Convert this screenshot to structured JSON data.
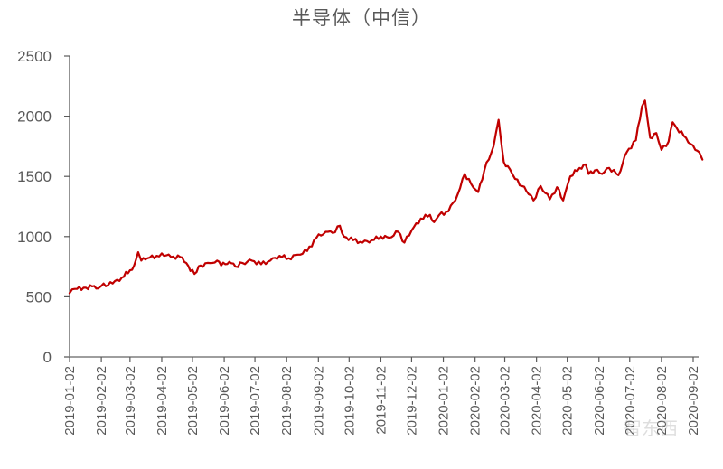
{
  "title": "半导体（中信）",
  "watermark": "智东西",
  "colors": {
    "line": "#C00000",
    "axis": "#595959",
    "text": "#595959",
    "background": "#FFFFFF"
  },
  "chart_data": {
    "type": "line",
    "title": "半导体（中信）",
    "xlabel": "",
    "ylabel": "",
    "ylim": [
      0,
      2500
    ],
    "yticks": [
      0,
      500,
      1000,
      1500,
      2000,
      2500
    ],
    "xticks": [
      "2019-01-02",
      "2019-02-02",
      "2019-03-02",
      "2019-04-02",
      "2019-05-02",
      "2019-06-02",
      "2019-07-02",
      "2019-08-02",
      "2019-09-02",
      "2019-10-02",
      "2019-11-02",
      "2019-12-02",
      "2020-01-02",
      "2020-02-02",
      "2020-03-02",
      "2020-04-02",
      "2020-05-02",
      "2020-06-02",
      "2020-07-02",
      "2020-08-02",
      "2020-09-02"
    ],
    "grid": false,
    "legend": "none",
    "series": [
      {
        "name": "半导体（中信）",
        "color": "#C00000",
        "points": [
          [
            "2019-01-02",
            530
          ],
          [
            "2019-01-07",
            565
          ],
          [
            "2019-01-18",
            575
          ],
          [
            "2019-01-26",
            590
          ],
          [
            "2019-01-30",
            570
          ],
          [
            "2019-02-02",
            590
          ],
          [
            "2019-02-13",
            610
          ],
          [
            "2019-02-22",
            660
          ],
          [
            "2019-03-02",
            720
          ],
          [
            "2019-03-06",
            760
          ],
          [
            "2019-03-10",
            870
          ],
          [
            "2019-03-13",
            800
          ],
          [
            "2019-03-19",
            820
          ],
          [
            "2019-03-28",
            840
          ],
          [
            "2019-04-02",
            860
          ],
          [
            "2019-04-11",
            830
          ],
          [
            "2019-04-20",
            830
          ],
          [
            "2019-04-24",
            790
          ],
          [
            "2019-05-04",
            690
          ],
          [
            "2019-05-10",
            760
          ],
          [
            "2019-05-19",
            780
          ],
          [
            "2019-05-26",
            800
          ],
          [
            "2019-05-30",
            760
          ],
          [
            "2019-06-07",
            790
          ],
          [
            "2019-06-13",
            750
          ],
          [
            "2019-06-20",
            780
          ],
          [
            "2019-06-29",
            800
          ],
          [
            "2019-07-08",
            770
          ],
          [
            "2019-07-17",
            800
          ],
          [
            "2019-07-26",
            840
          ],
          [
            "2019-08-04",
            820
          ],
          [
            "2019-08-13",
            850
          ],
          [
            "2019-08-22",
            880
          ],
          [
            "2019-08-31",
            990
          ],
          [
            "2019-09-09",
            1040
          ],
          [
            "2019-09-16",
            1030
          ],
          [
            "2019-09-23",
            1090
          ],
          [
            "2019-09-27",
            1000
          ],
          [
            "2019-10-06",
            970
          ],
          [
            "2019-10-15",
            950
          ],
          [
            "2019-10-24",
            970
          ],
          [
            "2019-11-02",
            1000
          ],
          [
            "2019-11-10",
            990
          ],
          [
            "2019-11-19",
            1040
          ],
          [
            "2019-11-25",
            950
          ],
          [
            "2019-12-02",
            1050
          ],
          [
            "2019-12-11",
            1150
          ],
          [
            "2019-12-20",
            1180
          ],
          [
            "2019-12-24",
            1120
          ],
          [
            "2019-12-29",
            1180
          ],
          [
            "2020-01-07",
            1210
          ],
          [
            "2020-01-16",
            1350
          ],
          [
            "2020-01-23",
            1520
          ],
          [
            "2020-01-29",
            1440
          ],
          [
            "2020-02-05",
            1370
          ],
          [
            "2020-02-11",
            1550
          ],
          [
            "2020-02-20",
            1750
          ],
          [
            "2020-02-25",
            1970
          ],
          [
            "2020-03-01",
            1620
          ],
          [
            "2020-03-07",
            1560
          ],
          [
            "2020-03-12",
            1480
          ],
          [
            "2020-03-19",
            1420
          ],
          [
            "2020-03-23",
            1380
          ],
          [
            "2020-03-30",
            1300
          ],
          [
            "2020-04-06",
            1420
          ],
          [
            "2020-04-15",
            1310
          ],
          [
            "2020-04-22",
            1410
          ],
          [
            "2020-04-28",
            1300
          ],
          [
            "2020-05-05",
            1500
          ],
          [
            "2020-05-14",
            1570
          ],
          [
            "2020-05-20",
            1600
          ],
          [
            "2020-05-23",
            1520
          ],
          [
            "2020-05-29",
            1550
          ],
          [
            "2020-06-05",
            1520
          ],
          [
            "2020-06-12",
            1570
          ],
          [
            "2020-06-21",
            1510
          ],
          [
            "2020-06-29",
            1700
          ],
          [
            "2020-07-08",
            1800
          ],
          [
            "2020-07-14",
            2080
          ],
          [
            "2020-07-17",
            2130
          ],
          [
            "2020-07-22",
            1820
          ],
          [
            "2020-07-28",
            1860
          ],
          [
            "2020-08-02",
            1720
          ],
          [
            "2020-08-09",
            1790
          ],
          [
            "2020-08-13",
            1950
          ],
          [
            "2020-08-17",
            1900
          ],
          [
            "2020-08-26",
            1820
          ],
          [
            "2020-09-04",
            1720
          ],
          [
            "2020-09-08",
            1700
          ],
          [
            "2020-09-11",
            1640
          ]
        ]
      }
    ]
  }
}
